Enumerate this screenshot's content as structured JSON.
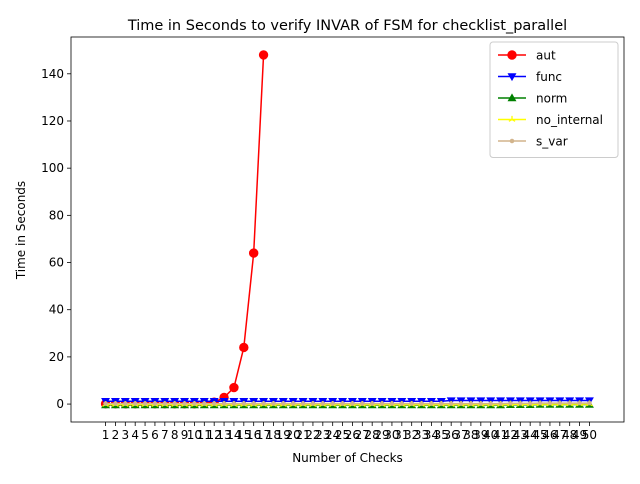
{
  "chart_data": {
    "type": "line",
    "title": "Time in Seconds to verify INVAR of FSM for checklist_parallel",
    "xlabel": "Number of Checks",
    "ylabel": "Time in Seconds",
    "x_ticks": [
      1,
      2,
      3,
      4,
      5,
      6,
      7,
      8,
      9,
      10,
      11,
      12,
      13,
      14,
      15,
      16,
      17,
      18,
      19,
      20,
      21,
      22,
      23,
      24,
      25,
      26,
      27,
      28,
      29,
      30,
      31,
      32,
      33,
      34,
      35,
      36,
      37,
      38,
      39,
      40,
      41,
      42,
      43,
      44,
      45,
      46,
      47,
      48,
      49,
      50
    ],
    "y_ticks": [
      0,
      20,
      40,
      60,
      80,
      100,
      120,
      140
    ],
    "xlim": [
      -2.5,
      53.5
    ],
    "ylim": [
      -7.6,
      155.6
    ],
    "grid": false,
    "legend_position": "top-right",
    "series": [
      {
        "name": "aut",
        "color": "#ff0000",
        "marker": "circle",
        "x": [
          1,
          2,
          3,
          4,
          5,
          6,
          7,
          8,
          9,
          10,
          11,
          12,
          13,
          14,
          15,
          16,
          17
        ],
        "values": [
          0.1,
          0.1,
          0.1,
          0.1,
          0.1,
          0.1,
          0.1,
          0.1,
          0.1,
          0.1,
          0.3,
          0.8,
          2.8,
          7,
          24,
          64,
          148
        ]
      },
      {
        "name": "func",
        "color": "#0000ff",
        "marker": "triangle-down",
        "x": [
          1,
          2,
          3,
          4,
          5,
          6,
          7,
          8,
          9,
          10,
          11,
          12,
          13,
          14,
          15,
          16,
          17,
          18,
          19,
          20,
          21,
          22,
          23,
          24,
          25,
          26,
          27,
          28,
          29,
          30,
          31,
          32,
          33,
          34,
          35,
          36,
          37,
          38,
          39,
          40,
          41,
          42,
          43,
          44,
          45,
          46,
          47,
          48,
          49,
          50
        ],
        "values": [
          1.2,
          1.2,
          1.2,
          1.2,
          1.2,
          1.2,
          1.2,
          1.2,
          1.2,
          1.2,
          1.2,
          1.2,
          1.2,
          1.2,
          1.2,
          1.2,
          1.2,
          1.2,
          1.2,
          1.2,
          1.2,
          1.2,
          1.2,
          1.2,
          1.2,
          1.2,
          1.2,
          1.2,
          1.2,
          1.2,
          1.2,
          1.2,
          1.2,
          1.2,
          1.2,
          1.5,
          1.5,
          1.5,
          1.5,
          1.5,
          1.5,
          1.5,
          1.5,
          1.5,
          1.5,
          1.5,
          1.5,
          1.5,
          1.5,
          1.5
        ]
      },
      {
        "name": "norm",
        "color": "#008000",
        "marker": "triangle-up",
        "x": [
          1,
          2,
          3,
          4,
          5,
          6,
          7,
          8,
          9,
          10,
          11,
          12,
          13,
          14,
          15,
          16,
          17,
          18,
          19,
          20,
          21,
          22,
          23,
          24,
          25,
          26,
          27,
          28,
          29,
          30,
          31,
          32,
          33,
          34,
          35,
          36,
          37,
          38,
          39,
          40,
          41,
          42,
          43,
          44,
          45,
          46,
          47,
          48,
          49,
          50
        ],
        "values": [
          -0.4,
          -0.4,
          -0.4,
          -0.4,
          -0.4,
          -0.4,
          -0.4,
          -0.4,
          -0.4,
          -0.4,
          -0.4,
          -0.4,
          -0.4,
          -0.4,
          -0.4,
          -0.4,
          -0.4,
          -0.4,
          -0.4,
          -0.4,
          -0.4,
          -0.4,
          -0.4,
          -0.4,
          -0.4,
          -0.4,
          -0.4,
          -0.4,
          -0.4,
          -0.4,
          -0.4,
          -0.4,
          -0.4,
          -0.4,
          -0.4,
          -0.4,
          -0.4,
          -0.4,
          -0.4,
          -0.4,
          -0.4,
          -0.3,
          -0.3,
          -0.3,
          -0.2,
          -0.2,
          -0.2,
          -0.2,
          -0.2,
          -0.2
        ]
      },
      {
        "name": "no_internal",
        "color": "#ffff00",
        "marker": "tri-up",
        "x": [
          1,
          2,
          3,
          4,
          5,
          6,
          7,
          8,
          9,
          10,
          11,
          12,
          13,
          14,
          15,
          16,
          17,
          18,
          19,
          20,
          21,
          22,
          23,
          24,
          25,
          26,
          27,
          28,
          29,
          30,
          31,
          32,
          33,
          34,
          35,
          36,
          37,
          38,
          39,
          40,
          41,
          42,
          43,
          44,
          45,
          46,
          47,
          48,
          49,
          50
        ],
        "values": [
          -0.2,
          -0.2,
          -0.2,
          -0.2,
          -0.2,
          -0.2,
          -0.2,
          -0.2,
          -0.2,
          -0.2,
          -0.2,
          -0.2,
          -0.2,
          -0.2,
          -0.2,
          -0.2,
          -0.2,
          -0.2,
          -0.2,
          -0.2,
          -0.2,
          -0.2,
          -0.2,
          -0.2,
          -0.2,
          -0.2,
          -0.2,
          -0.2,
          -0.2,
          -0.2,
          -0.2,
          -0.2,
          -0.2,
          -0.2,
          -0.2,
          -0.2,
          -0.2,
          -0.2,
          -0.2,
          -0.2,
          -0.2,
          -0.1,
          -0.1,
          -0.1,
          0,
          0,
          0,
          0,
          0,
          0
        ]
      },
      {
        "name": "s_var",
        "color": "#d2b48c",
        "marker": "point",
        "x": [
          1,
          2,
          3,
          4,
          5,
          6,
          7,
          8,
          9,
          10,
          11,
          12,
          13,
          14,
          15,
          16,
          17,
          18,
          19,
          20,
          21,
          22,
          23,
          24,
          25,
          26,
          27,
          28,
          29,
          30,
          31,
          32,
          33,
          34,
          35,
          36,
          37,
          38,
          39,
          40,
          41,
          42,
          43,
          44,
          45,
          46,
          47,
          48,
          49,
          50
        ],
        "values": [
          0.2,
          0.2,
          0.2,
          0.2,
          0.2,
          0.2,
          0.2,
          0.2,
          0.2,
          0.2,
          0.2,
          0.2,
          0.2,
          0.2,
          0.2,
          0.2,
          0.2,
          0.2,
          0.2,
          0.2,
          0.2,
          0.2,
          0.2,
          0.2,
          0.2,
          0.2,
          0.2,
          0.2,
          0.2,
          0.2,
          0.2,
          0.2,
          0.2,
          0.2,
          0.2,
          0.2,
          0.2,
          0.2,
          0.2,
          0.2,
          0.2,
          0.3,
          0.3,
          0.3,
          0.4,
          0.4,
          0.4,
          0.4,
          0.4,
          0.4
        ]
      }
    ]
  }
}
